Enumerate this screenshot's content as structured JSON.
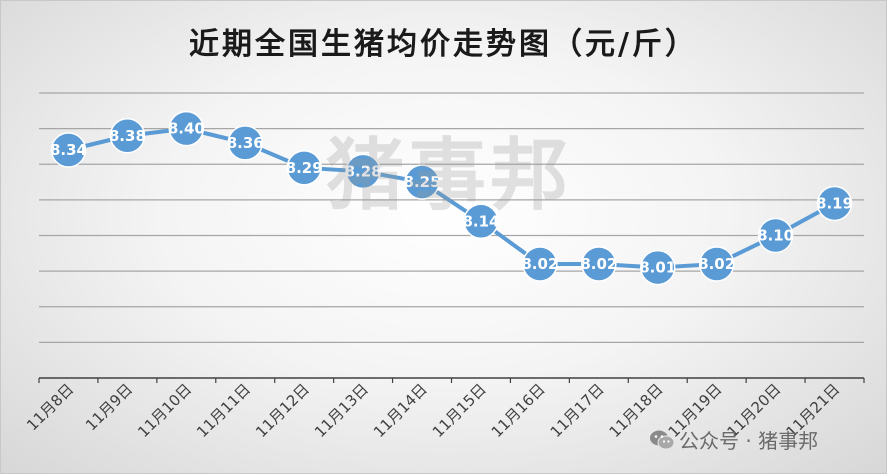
{
  "chart_data": {
    "type": "line",
    "title": "近期全国生猪均价走势图（元/斤）",
    "categories": [
      "11月8日",
      "11月9日",
      "11月10日",
      "11月11日",
      "11月12日",
      "11月13日",
      "11月14日",
      "11月15日",
      "11月16日",
      "11月17日",
      "11月18日",
      "11月19日",
      "11月20日",
      "11月21日"
    ],
    "values": [
      8.34,
      8.38,
      8.4,
      8.36,
      8.29,
      8.28,
      8.25,
      8.14,
      8.02,
      8.02,
      8.01,
      8.02,
      8.1,
      8.19
    ],
    "value_labels": [
      "8.34",
      "8.38",
      "8.40",
      "8.36",
      "8.29",
      "8.28",
      "8.25",
      "8.14",
      "8.02",
      "8.02",
      "8.01",
      "8.02",
      "8.10",
      "8.19"
    ],
    "ylim": [
      7.7,
      8.5
    ],
    "grid": true,
    "legend": "none",
    "xlabel": "",
    "ylabel": "",
    "colors": {
      "line": "#5b9bd5",
      "marker": "#5b9bd5"
    }
  },
  "watermark": "猪事邦",
  "credit": {
    "text": "公众号 · 猪事邦",
    "icon": "wechat-icon"
  }
}
